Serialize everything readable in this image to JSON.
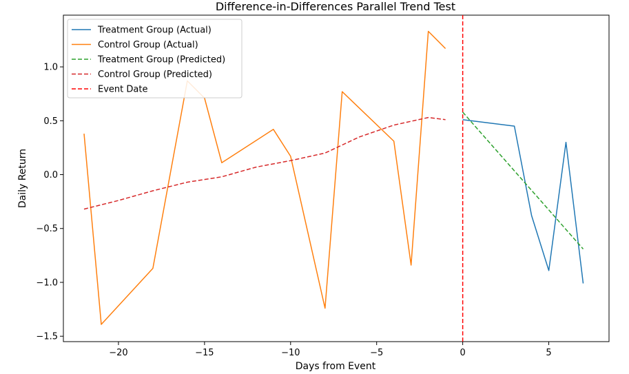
{
  "chart_data": {
    "type": "line",
    "title": "Difference-in-Differences Parallel Trend Test",
    "xlabel": "Days from Event",
    "ylabel": "Daily Return",
    "xlim": [
      -23.2,
      8.5
    ],
    "ylim": [
      -1.55,
      1.48
    ],
    "xticks": [
      -20,
      -15,
      -10,
      -5,
      0,
      5
    ],
    "xtick_labels": [
      "−20",
      "−15",
      "−10",
      "−5",
      "0",
      "5"
    ],
    "yticks": [
      -1.5,
      -1.0,
      -0.5,
      0.0,
      0.5,
      1.0
    ],
    "ytick_labels": [
      "−1.5",
      "−1.0",
      "−0.5",
      "0.0",
      "0.5",
      "1.0"
    ],
    "grid": false,
    "legend_position": "top-left",
    "series": [
      {
        "name": "Treatment Group (Actual)",
        "style": "solid",
        "color": "#1f77b4",
        "x": [
          0,
          3,
          4,
          5,
          6,
          7
        ],
        "y": [
          0.51,
          0.45,
          -0.38,
          -0.89,
          0.3,
          -1.01
        ]
      },
      {
        "name": "Control Group (Actual)",
        "style": "solid",
        "color": "#ff7f0e",
        "x": [
          -22,
          -21,
          -18,
          -16,
          -15,
          -14,
          -11,
          -10,
          -8,
          -7,
          -4,
          -3,
          -2,
          -1
        ],
        "y": [
          0.38,
          -1.39,
          -0.87,
          0.87,
          0.71,
          0.11,
          0.42,
          0.17,
          -1.24,
          0.77,
          0.31,
          -0.84,
          1.33,
          1.17
        ]
      },
      {
        "name": "Treatment Group (Predicted)",
        "style": "dashed",
        "color": "#2ca02c",
        "x": [
          0,
          7
        ],
        "y": [
          0.58,
          -0.69
        ]
      },
      {
        "name": "Control Group (Predicted)",
        "style": "dashed",
        "color": "#d62728",
        "x": [
          -22,
          -20,
          -18,
          -16,
          -14,
          -12,
          -10,
          -8,
          -6,
          -4,
          -2,
          -1
        ],
        "y": [
          -0.32,
          -0.24,
          -0.15,
          -0.07,
          -0.02,
          0.07,
          0.13,
          0.2,
          0.35,
          0.46,
          0.53,
          0.51
        ]
      },
      {
        "name": "Event Date",
        "style": "dashed",
        "color": "#ff0000",
        "type": "vline",
        "x": 0
      }
    ]
  }
}
